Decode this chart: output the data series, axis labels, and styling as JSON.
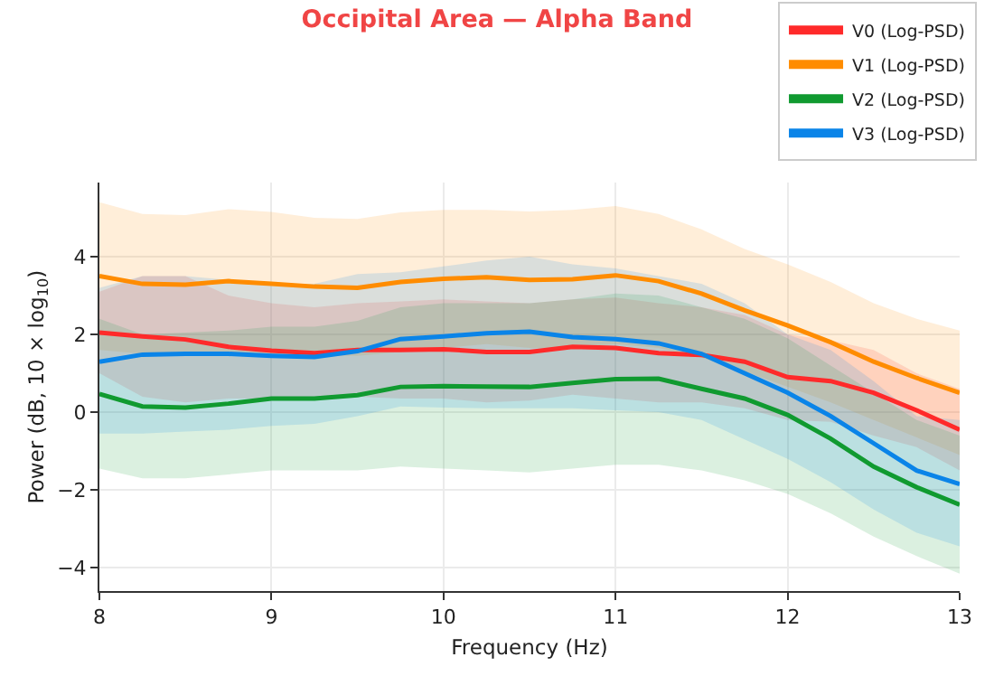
{
  "chart_data": {
    "type": "line",
    "title": "Occipital Area — Alpha Band",
    "xlabel": "Frequency (Hz)",
    "ylabel": "Power (dB, 10 × log$_{10}$)",
    "x": [
      8,
      8.25,
      8.5,
      8.75,
      9,
      9.25,
      9.5,
      9.75,
      10,
      10.25,
      10.5,
      10.75,
      11,
      11.25,
      11.5,
      11.75,
      12,
      12.25,
      12.5,
      12.75,
      13
    ],
    "series": [
      {
        "name": "V0 (Log-PSD)",
        "color": "#ff2a2a",
        "values": [
          2.05,
          1.95,
          1.87,
          1.68,
          1.58,
          1.52,
          1.6,
          1.6,
          1.62,
          1.55,
          1.55,
          1.68,
          1.65,
          1.52,
          1.47,
          1.3,
          0.9,
          0.8,
          0.5,
          0.05,
          -0.45
        ],
        "upper": [
          3.1,
          3.5,
          3.5,
          3.0,
          2.8,
          2.7,
          2.8,
          2.85,
          2.9,
          2.85,
          2.8,
          2.9,
          2.95,
          2.8,
          2.7,
          2.5,
          2.0,
          1.85,
          1.6,
          1.0,
          0.6
        ],
        "lower": [
          1.0,
          0.4,
          0.25,
          0.35,
          0.35,
          0.35,
          0.4,
          0.35,
          0.35,
          0.25,
          0.3,
          0.45,
          0.35,
          0.25,
          0.25,
          0.1,
          -0.2,
          -0.25,
          -0.6,
          -0.9,
          -1.5
        ]
      },
      {
        "name": "V1 (Log-PSD)",
        "color": "#ff8c00",
        "values": [
          3.5,
          3.3,
          3.28,
          3.37,
          3.3,
          3.23,
          3.2,
          3.35,
          3.43,
          3.47,
          3.4,
          3.42,
          3.52,
          3.37,
          3.05,
          2.62,
          2.23,
          1.8,
          1.3,
          0.88,
          0.5
        ],
        "upper": [
          5.4,
          5.1,
          5.07,
          5.22,
          5.15,
          5.0,
          4.97,
          5.14,
          5.2,
          5.2,
          5.16,
          5.2,
          5.3,
          5.1,
          4.7,
          4.2,
          3.8,
          3.35,
          2.8,
          2.4,
          2.1
        ],
        "lower": [
          1.6,
          1.5,
          1.5,
          1.5,
          1.45,
          1.45,
          1.45,
          1.55,
          1.65,
          1.75,
          1.65,
          1.65,
          1.75,
          1.65,
          1.4,
          1.05,
          0.65,
          0.25,
          -0.2,
          -0.65,
          -1.1
        ]
      },
      {
        "name": "V2 (Log-PSD)",
        "color": "#109a30",
        "values": [
          0.47,
          0.15,
          0.12,
          0.22,
          0.35,
          0.35,
          0.44,
          0.65,
          0.67,
          0.66,
          0.65,
          0.75,
          0.85,
          0.86,
          0.6,
          0.35,
          -0.07,
          -0.68,
          -1.4,
          -1.93,
          -2.38
        ],
        "upper": [
          2.4,
          2.0,
          2.05,
          2.1,
          2.2,
          2.2,
          2.35,
          2.7,
          2.8,
          2.8,
          2.8,
          2.9,
          3.05,
          3.0,
          2.7,
          2.4,
          1.9,
          1.2,
          0.5,
          -0.2,
          -0.6
        ],
        "lower": [
          -1.45,
          -1.7,
          -1.7,
          -1.6,
          -1.5,
          -1.5,
          -1.5,
          -1.4,
          -1.45,
          -1.5,
          -1.55,
          -1.45,
          -1.35,
          -1.35,
          -1.5,
          -1.75,
          -2.1,
          -2.6,
          -3.2,
          -3.7,
          -4.15
        ]
      },
      {
        "name": "V3 (Log-PSD)",
        "color": "#0a84e8",
        "values": [
          1.3,
          1.48,
          1.5,
          1.5,
          1.45,
          1.42,
          1.57,
          1.88,
          1.95,
          2.03,
          2.07,
          1.93,
          1.88,
          1.77,
          1.5,
          1.0,
          0.5,
          -0.1,
          -0.8,
          -1.5,
          -1.85
        ],
        "upper": [
          3.2,
          3.5,
          3.5,
          3.4,
          3.3,
          3.3,
          3.55,
          3.6,
          3.75,
          3.9,
          4.0,
          3.8,
          3.7,
          3.5,
          3.3,
          2.8,
          2.0,
          1.6,
          0.8,
          -0.1,
          -0.2
        ],
        "lower": [
          -0.55,
          -0.55,
          -0.5,
          -0.45,
          -0.35,
          -0.3,
          -0.1,
          0.15,
          0.12,
          0.1,
          0.1,
          0.1,
          0.05,
          0.0,
          -0.2,
          -0.7,
          -1.2,
          -1.8,
          -2.5,
          -3.1,
          -3.45
        ]
      }
    ],
    "xlim": [
      8,
      13
    ],
    "xticks": [
      8,
      9,
      10,
      11,
      12,
      13
    ],
    "ylim": [
      -4.6,
      5.9
    ],
    "yticks": [
      {
        "value": -4,
        "label": "−4"
      },
      {
        "value": -2,
        "label": "−2"
      },
      0,
      2,
      4
    ],
    "grid": true,
    "legend": "top right",
    "marker": "none",
    "line_style": "solid"
  }
}
